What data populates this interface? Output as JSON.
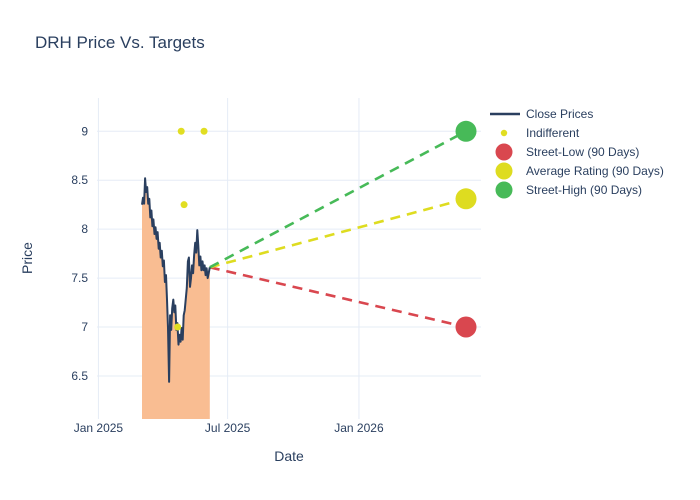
{
  "title": "DRH Price Vs. Targets",
  "colors": {
    "text": "#2a3f5f",
    "close_line": "#2a3f5f",
    "area_fill": "#f9bd92",
    "grid": "#e5ecf6",
    "background": "#ffffff",
    "indifferent": "#e1de22",
    "street_low": "#d9474f",
    "average_rating": "#dedc20",
    "street_high": "#47ba58"
  },
  "legend": {
    "items": [
      {
        "label": "Close Prices",
        "type": "line",
        "color": "#2a3f5f"
      },
      {
        "label": "Indifferent",
        "type": "dot-small",
        "color": "#e1de22"
      },
      {
        "label": "Street-Low (90 Days)",
        "type": "dot",
        "color": "#d9474f"
      },
      {
        "label": "Average Rating (90 Days)",
        "type": "dot",
        "color": "#dedc20"
      },
      {
        "label": "Street-High (90 Days)",
        "type": "dot",
        "color": "#47ba58"
      }
    ]
  },
  "chart_data": {
    "type": "line",
    "title": "DRH Price Vs. Targets",
    "xlabel": "Date",
    "ylabel": "Price",
    "grid": true,
    "legend_position": "right",
    "x_range": [
      "2024-12-30",
      "2026-06-21"
    ],
    "y_range": [
      6.06,
      9.34
    ],
    "x_ticks": [
      {
        "label": "Jan 2025",
        "date": "2025-01-01"
      },
      {
        "label": "Jul 2025",
        "date": "2025-07-01"
      },
      {
        "label": "Jan 2026",
        "date": "2026-01-01"
      }
    ],
    "y_ticks": [
      {
        "label": "6.5",
        "value": 6.5
      },
      {
        "label": "7",
        "value": 7
      },
      {
        "label": "7.5",
        "value": 7.5
      },
      {
        "label": "8",
        "value": 8
      },
      {
        "label": "8.5",
        "value": 8.5
      },
      {
        "label": "9",
        "value": 9
      }
    ],
    "close_prices": {
      "name": "Close Prices",
      "style": "line-with-area-fill",
      "start_date": "2025-03-03",
      "end_date": "2025-06-06",
      "values": [
        8.25,
        8.32,
        8.26,
        8.52,
        8.38,
        8.43,
        8.26,
        8.31,
        8.12,
        8.19,
        8.03,
        8.1,
        7.95,
        8.02,
        7.9,
        7.97,
        7.8,
        7.86,
        7.71,
        7.78,
        7.62,
        7.68,
        7.46,
        7.53,
        7.28,
        6.99,
        6.44,
        7.12,
        6.97,
        7.19,
        7.28,
        7.15,
        7.22,
        6.97,
        7.04,
        6.82,
        6.92,
        6.85,
        6.99,
        6.87,
        7.12,
        7.17,
        7.29,
        7.4,
        7.67,
        7.71,
        7.41,
        7.5,
        7.63,
        7.55,
        7.73,
        7.86,
        7.76,
        7.99,
        7.83,
        7.63,
        7.72,
        7.58,
        7.67,
        7.58,
        7.63,
        7.53,
        7.6,
        7.5,
        7.55,
        7.61
      ]
    },
    "indifferent_points": {
      "name": "Indifferent",
      "points": [
        {
          "date": "2025-04-22",
          "price": 7.0
        },
        {
          "date": "2025-04-27",
          "price": 9.0
        },
        {
          "date": "2025-05-01",
          "price": 8.25
        },
        {
          "date": "2025-05-29",
          "price": 9.0
        }
      ]
    },
    "projection_from": {
      "date": "2025-06-06",
      "price": 7.61
    },
    "targets": [
      {
        "name": "Street-Low (90 Days)",
        "date": "2026-05-31",
        "price": 7.0,
        "color": "#d9474f"
      },
      {
        "name": "Average Rating (90 Days)",
        "date": "2026-05-31",
        "price": 8.31,
        "color": "#dedc20"
      },
      {
        "name": "Street-High (90 Days)",
        "date": "2026-05-31",
        "price": 9.0,
        "color": "#47ba58"
      }
    ]
  }
}
